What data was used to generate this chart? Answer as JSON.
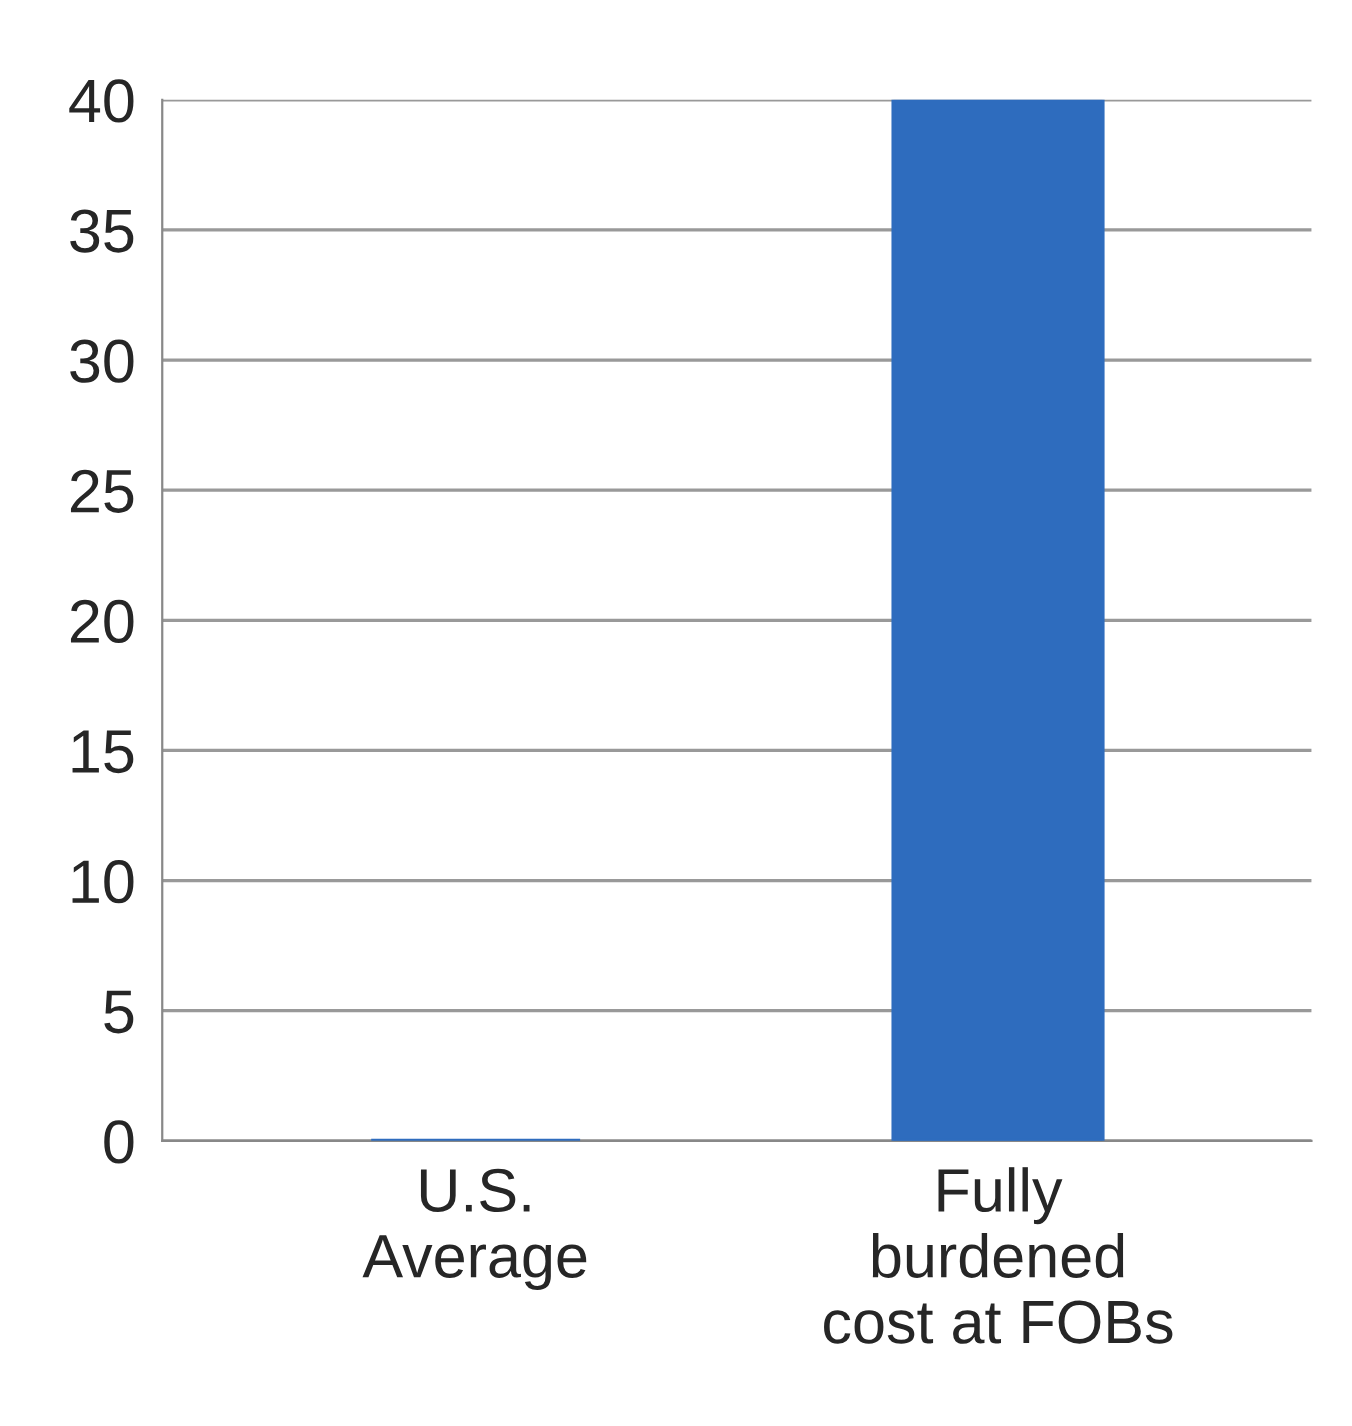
{
  "chart_data": {
    "type": "bar",
    "categories": [
      "U.S.\nAverage",
      "Fully\nburdened\ncost at FOBs"
    ],
    "values": [
      0,
      40
    ],
    "color": "#2e6cbe",
    "ylim": [
      0,
      40
    ],
    "yticks": [
      0,
      5,
      10,
      15,
      20,
      25,
      30,
      35,
      40
    ],
    "grid": "y"
  }
}
